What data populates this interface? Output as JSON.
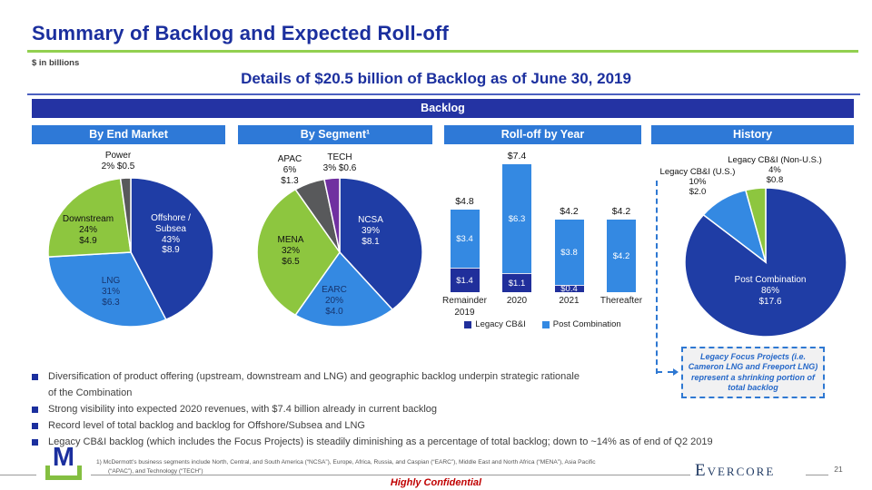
{
  "slide": {
    "title": "Summary of Backlog and Expected Roll-off",
    "units_label": "$ in billions",
    "heading": "Details of $20.5 billion of Backlog as of June 30, 2019",
    "banner": "Backlog",
    "confidential": "Highly Confidential",
    "brand": "Evercore",
    "logo_letter": "M",
    "page_number": "21",
    "footnote_line1": "1)    McDermott’s business segments include North, Central, and South America (“NCSA”), Europe, Africa, Russia, and Caspian (“EARC”), Middle East and North Africa (“MENA”), Asia Pacific",
    "footnote_line2": "(“APAC”), and Technology (“TECH”)"
  },
  "colors": {
    "navy_brand": "#1b2f9e",
    "banner_navy": "#2433a3",
    "panel_header_blue": "#2e79d7",
    "dark_slice": "#1f3da5",
    "light_slice": "#3489e2",
    "green_slice": "#8dc63f",
    "gray_slice": "#58595b",
    "purple_slice": "#7030a0",
    "bar_legacy_navy": "#202f9b",
    "title_rule_green": "#92d050",
    "confidential_red": "#c00000"
  },
  "panels": [
    {
      "label": "By End Market"
    },
    {
      "label": "By Segment¹"
    },
    {
      "label": "Roll-off by Year"
    },
    {
      "label": "History"
    }
  ],
  "chart_data": [
    {
      "type": "pie",
      "title": "By End Market",
      "units": "$ in billions",
      "slices": [
        {
          "label": "Offshore / Subsea",
          "pct": 43,
          "value": 8.9,
          "color": "#1f3da5",
          "display": "Offshore /\nSubsea\n43%\n$8.9"
        },
        {
          "label": "LNG",
          "pct": 31,
          "value": 6.3,
          "color": "#3489e2",
          "display": "LNG\n31%\n$6.3"
        },
        {
          "label": "Downstream",
          "pct": 24,
          "value": 4.9,
          "color": "#8dc63f",
          "display": "Downstream\n24%\n$4.9"
        },
        {
          "label": "Power",
          "pct": 2,
          "value": 0.5,
          "color": "#58595b",
          "display": "Power\n2%  $0.5"
        }
      ]
    },
    {
      "type": "pie",
      "title": "By Segment¹",
      "units": "$ in billions",
      "slices": [
        {
          "label": "NCSA",
          "pct": 39,
          "value": 8.1,
          "color": "#1f3da5",
          "display": "NCSA\n39%\n$8.1"
        },
        {
          "label": "EARC",
          "pct": 20,
          "value": 4.0,
          "color": "#3489e2",
          "display": "EARC\n20%\n$4.0"
        },
        {
          "label": "MENA",
          "pct": 32,
          "value": 6.5,
          "color": "#8dc63f",
          "display": "MENA\n32%\n$6.5"
        },
        {
          "label": "APAC",
          "pct": 6,
          "value": 1.3,
          "color": "#58595b",
          "display": "APAC\n6%\n$1.3"
        },
        {
          "label": "TECH",
          "pct": 3,
          "value": 0.6,
          "color": "#7030a0",
          "display": "TECH\n3%  $0.6"
        }
      ]
    },
    {
      "type": "stacked_bar",
      "title": "Roll-off by Year",
      "units": "$ in billions",
      "categories": [
        "Remainder\n2019",
        "2020",
        "2021",
        "Thereafter"
      ],
      "series": [
        {
          "name": "Legacy CB&I",
          "color": "#202f9b",
          "values": [
            1.4,
            1.1,
            0.4,
            0
          ]
        },
        {
          "name": "Post Combination",
          "color": "#3489e2",
          "values": [
            3.4,
            6.3,
            3.8,
            4.2
          ]
        }
      ],
      "totals": [
        4.8,
        7.4,
        4.2,
        4.2
      ],
      "value_prefix": "$",
      "ylim": [
        0,
        7.4
      ],
      "legend_position": "bottom",
      "grid": false
    },
    {
      "type": "pie",
      "title": "History",
      "units": "$ in billions",
      "slices": [
        {
          "label": "Post Combination",
          "pct": 86,
          "value": 17.6,
          "color": "#1f3da5",
          "display": "Post Combination\n86%\n$17.6"
        },
        {
          "label": "Legacy CB&I (U.S.)",
          "pct": 10,
          "value": 2.0,
          "color": "#3489e2",
          "display": "Legacy CB&I (U.S.)\n10%\n$2.0"
        },
        {
          "label": "Legacy CB&I (Non-U.S.)",
          "pct": 4,
          "value": 0.8,
          "color": "#8dc63f",
          "display": "Legacy CB&I (Non-U.S.)\n4%\n$0.8"
        }
      ]
    }
  ],
  "callout": {
    "text": "Legacy Focus Projects (i.e. Cameron LNG and Freeport LNG) represent a shrinking portion of total backlog"
  },
  "bullets": [
    "Diversification of product offering (upstream, downstream and LNG) and geographic backlog underpin strategic rationale\nof the Combination",
    "Strong visibility into expected 2020 revenues, with $7.4 billion already in current backlog",
    "Record level of total backlog and backlog for Offshore/Subsea and LNG",
    "Legacy CB&I backlog (which includes the Focus Projects) is steadily diminishing as a percentage of total backlog; down to ~14% as of end of Q2 2019"
  ]
}
